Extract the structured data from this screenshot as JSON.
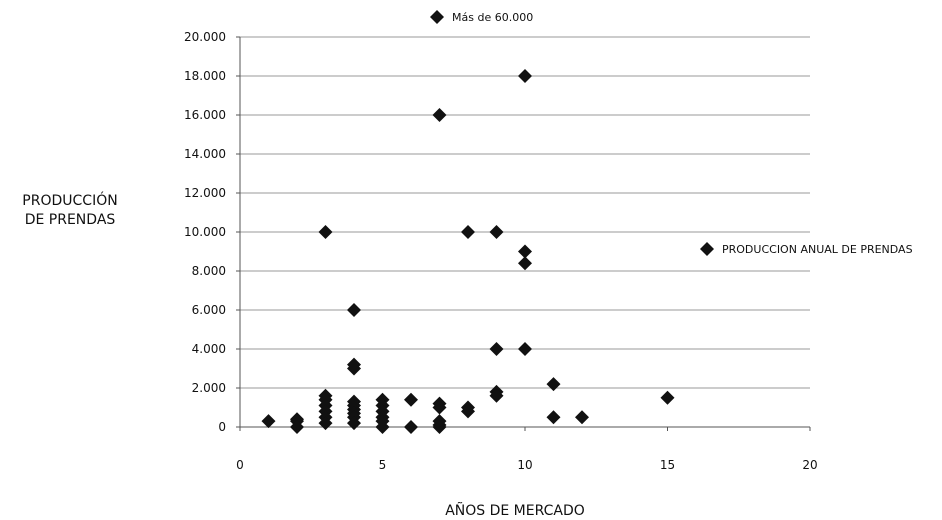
{
  "chart_data": {
    "type": "scatter",
    "title": "",
    "xlabel": "AÑOS DE MERCADO",
    "ylabel_lines": [
      "PRODUCCIÓN",
      "DE PRENDAS"
    ],
    "xlim": [
      0,
      20
    ],
    "ylim": [
      0,
      20000
    ],
    "x_ticks": [
      0,
      5,
      10,
      15,
      20
    ],
    "x_tick_labels": [
      "0",
      "5",
      "10",
      "15",
      "20"
    ],
    "y_ticks": [
      0,
      2000,
      4000,
      6000,
      8000,
      10000,
      12000,
      14000,
      16000,
      18000,
      20000
    ],
    "y_tick_labels": [
      "0",
      "2.000",
      "4.000",
      "6.000",
      "8.000",
      "10.000",
      "12.000",
      "14.000",
      "16.000",
      "18.000",
      "20.000"
    ],
    "grid": true,
    "legend_position": "right",
    "series": [
      {
        "name": "PRODUCCION ANUAL DE PRENDAS",
        "color": "#111111",
        "marker": "diamond",
        "points": [
          [
            1,
            300
          ],
          [
            2,
            400
          ],
          [
            2,
            300
          ],
          [
            2,
            0
          ],
          [
            3,
            10000
          ],
          [
            3,
            1600
          ],
          [
            3,
            1400
          ],
          [
            3,
            1100
          ],
          [
            3,
            800
          ],
          [
            3,
            500
          ],
          [
            3,
            200
          ],
          [
            4,
            6000
          ],
          [
            4,
            3200
          ],
          [
            4,
            3000
          ],
          [
            4,
            1300
          ],
          [
            4,
            1100
          ],
          [
            4,
            900
          ],
          [
            4,
            700
          ],
          [
            4,
            500
          ],
          [
            4,
            200
          ],
          [
            5,
            1400
          ],
          [
            5,
            1100
          ],
          [
            5,
            800
          ],
          [
            5,
            500
          ],
          [
            5,
            300
          ],
          [
            5,
            0
          ],
          [
            6,
            1400
          ],
          [
            6,
            0
          ],
          [
            7,
            16000
          ],
          [
            7,
            1200
          ],
          [
            7,
            1000
          ],
          [
            7,
            300
          ],
          [
            7,
            100
          ],
          [
            7,
            0
          ],
          [
            8,
            10000
          ],
          [
            8,
            1000
          ],
          [
            8,
            800
          ],
          [
            9,
            10000
          ],
          [
            9,
            4000
          ],
          [
            9,
            1800
          ],
          [
            9,
            1600
          ],
          [
            10,
            18000
          ],
          [
            10,
            9000
          ],
          [
            10,
            8400
          ],
          [
            10,
            4000
          ],
          [
            11,
            2200
          ],
          [
            11,
            500
          ],
          [
            12,
            500
          ],
          [
            15,
            1500
          ]
        ]
      }
    ],
    "annotations": [
      {
        "text": "Más de 60.000",
        "marker": "diamond",
        "position": "top-center"
      }
    ]
  }
}
